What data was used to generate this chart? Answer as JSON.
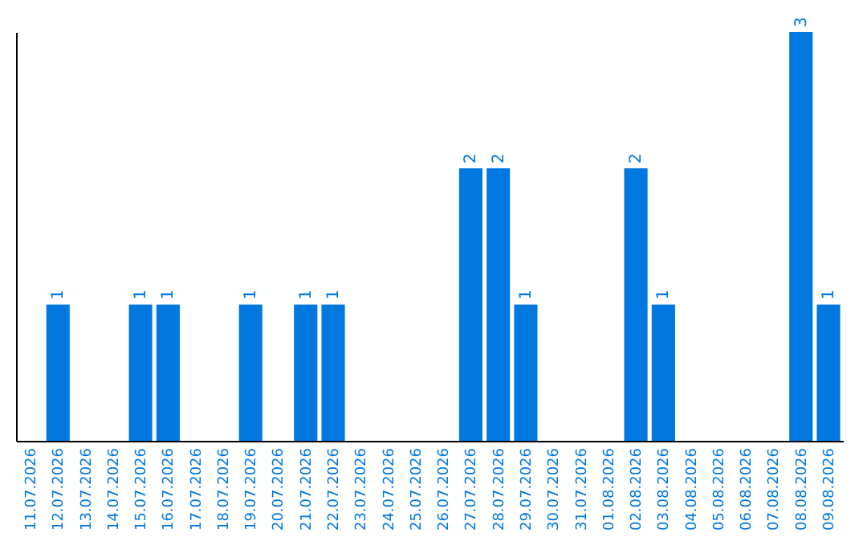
{
  "chart_data": {
    "type": "bar",
    "categories": [
      "11.07.2026",
      "12.07.2026",
      "13.07.2026",
      "14.07.2026",
      "15.07.2026",
      "16.07.2026",
      "17.07.2026",
      "18.07.2026",
      "19.07.2026",
      "20.07.2026",
      "21.07.2026",
      "22.07.2026",
      "23.07.2026",
      "24.07.2026",
      "25.07.2026",
      "26.07.2026",
      "27.07.2026",
      "28.07.2026",
      "29.07.2026",
      "30.07.2026",
      "31.07.2026",
      "01.08.2026",
      "02.08.2026",
      "03.08.2026",
      "04.08.2026",
      "05.08.2026",
      "06.08.2026",
      "07.08.2026",
      "08.08.2026",
      "09.08.2026"
    ],
    "values": [
      0,
      1,
      0,
      0,
      1,
      1,
      0,
      0,
      1,
      0,
      1,
      1,
      0,
      0,
      0,
      0,
      2,
      2,
      1,
      0,
      0,
      0,
      2,
      1,
      0,
      0,
      0,
      0,
      3,
      1
    ],
    "value_labels": [
      null,
      "1",
      null,
      null,
      "1",
      "1",
      null,
      null,
      "1",
      null,
      "1",
      "1",
      null,
      null,
      null,
      null,
      "2",
      "2",
      "1",
      null,
      null,
      null,
      "2",
      "1",
      null,
      null,
      null,
      null,
      "3",
      "1"
    ],
    "color": "#0078e0",
    "ylim": [
      0,
      3
    ],
    "grid": false,
    "tick_labels": "x"
  }
}
